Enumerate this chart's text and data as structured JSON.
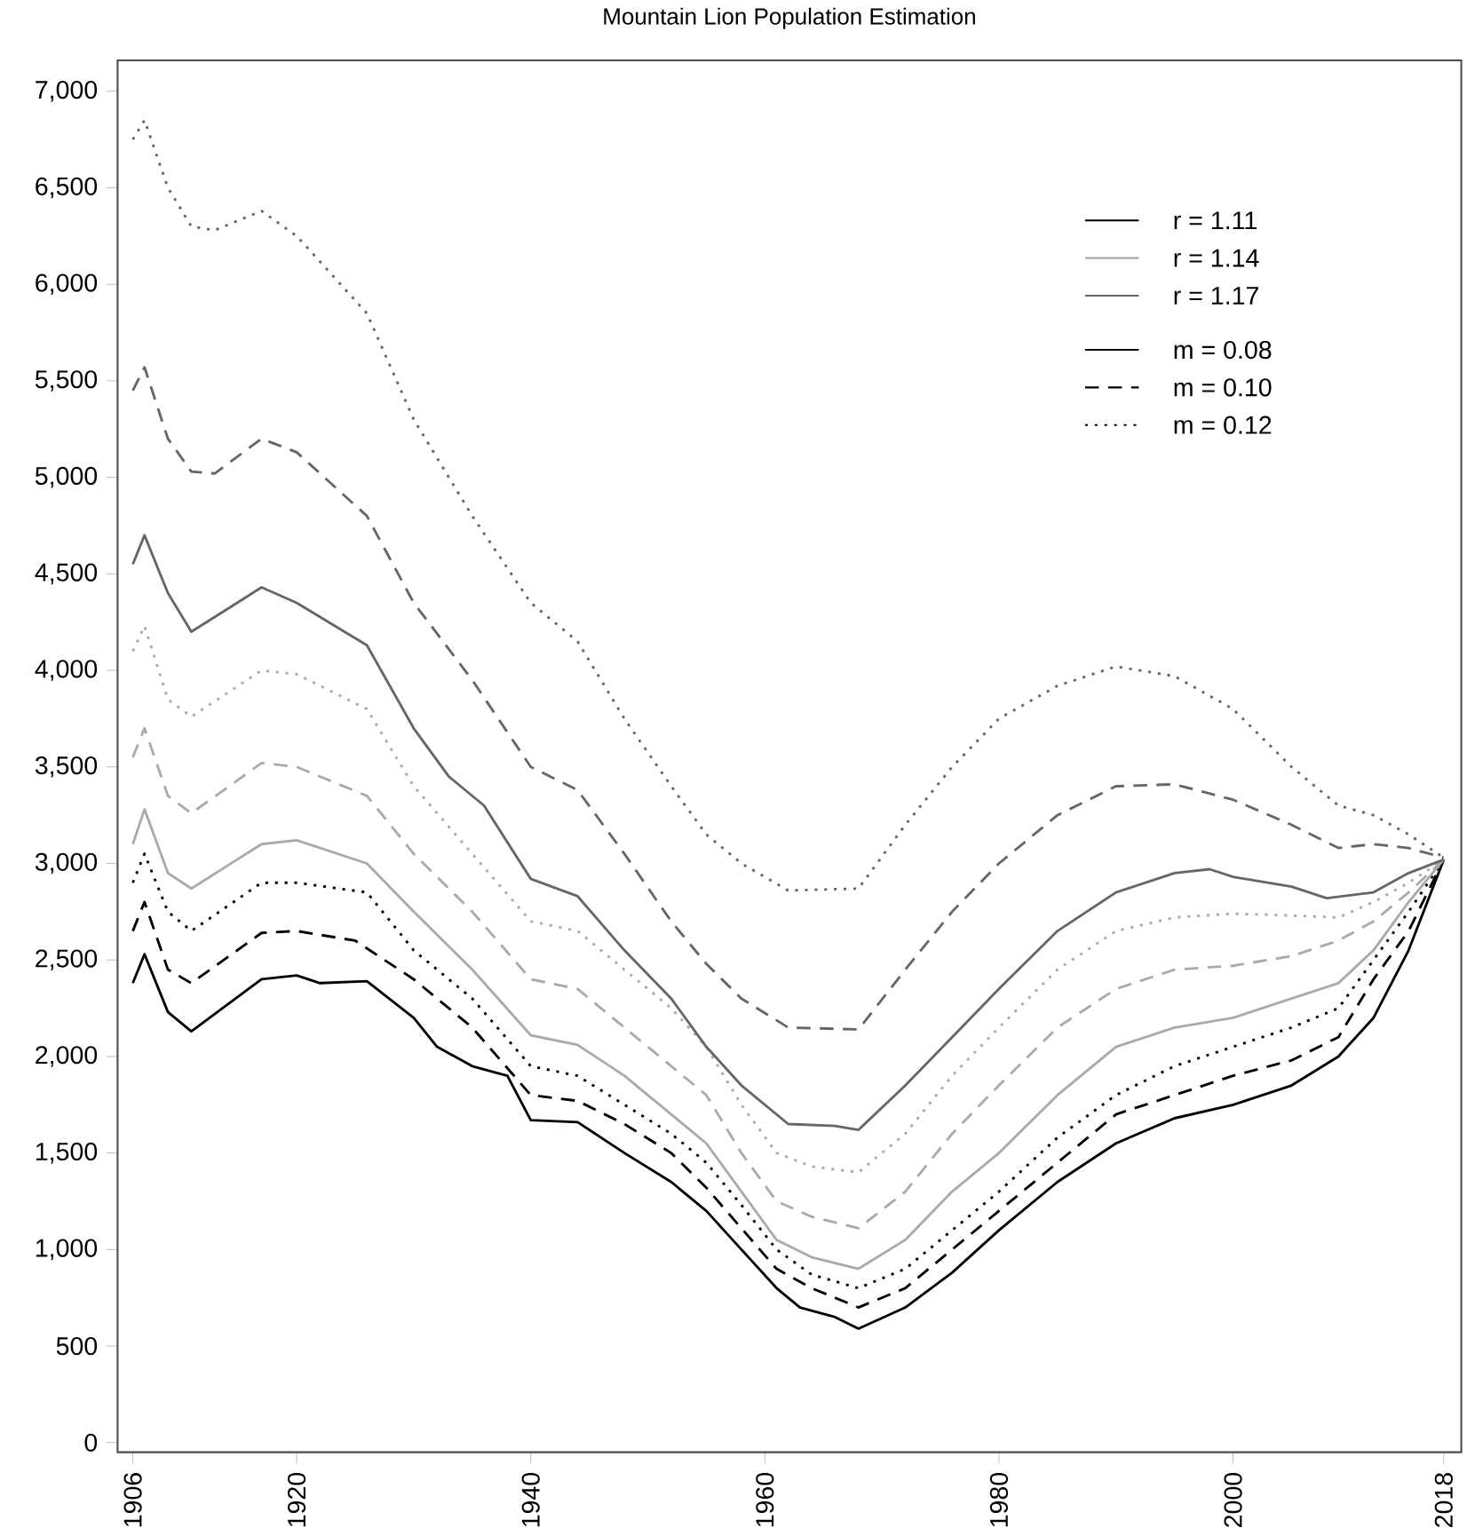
{
  "chart_data": {
    "type": "line",
    "title": "Mountain Lion Population Estimation",
    "xlim": [
      1904.7,
      2019.5
    ],
    "ylim": [
      -50,
      7160
    ],
    "xticks": [
      1906,
      1920,
      1940,
      1960,
      1980,
      2000,
      2018
    ],
    "yticks": [
      {
        "value": 0,
        "label": "0"
      },
      {
        "value": 500,
        "label": "500"
      },
      {
        "value": 1000,
        "label": "1,000"
      },
      {
        "value": 1500,
        "label": "1,500"
      },
      {
        "value": 2000,
        "label": "2,000"
      },
      {
        "value": 2500,
        "label": "2,500"
      },
      {
        "value": 3000,
        "label": "3,000"
      },
      {
        "value": 3500,
        "label": "3,500"
      },
      {
        "value": 4000,
        "label": "4,000"
      },
      {
        "value": 4500,
        "label": "4,500"
      },
      {
        "value": 5000,
        "label": "5,000"
      },
      {
        "value": 5500,
        "label": "5,500"
      },
      {
        "value": 6000,
        "label": "6,000"
      },
      {
        "value": 6500,
        "label": "6,500"
      },
      {
        "value": 7000,
        "label": "7,000"
      }
    ],
    "grid": false,
    "marker": "none",
    "annotations": [
      "r = 1.11",
      "r = 1.14",
      "r = 1.17",
      "m = 0.08",
      "m = 0.10",
      "m = 0.12"
    ],
    "series": [
      {
        "color": "#000000",
        "line_style": "solid",
        "x": [
          1906,
          1907,
          1909,
          1911,
          1917,
          1920,
          1922,
          1926,
          1930,
          1932,
          1935,
          1938,
          1940,
          1944,
          1948,
          1952,
          1955,
          1958,
          1961,
          1963,
          1966,
          1968,
          1972,
          1976,
          1980,
          1985,
          1990,
          1995,
          2000,
          2005,
          2009,
          2012,
          2015,
          2018
        ],
        "values": [
          2380,
          2530,
          2230,
          2130,
          2400,
          2420,
          2380,
          2390,
          2200,
          2050,
          1950,
          1900,
          1670,
          1660,
          1500,
          1350,
          1200,
          1000,
          800,
          700,
          650,
          590,
          700,
          880,
          1100,
          1350,
          1550,
          1680,
          1750,
          1850,
          2000,
          2200,
          2550,
          3020
        ]
      },
      {
        "color": "#000000",
        "line_style": "dashed",
        "x": [
          1906,
          1907,
          1909,
          1911,
          1917,
          1920,
          1925,
          1930,
          1935,
          1940,
          1944,
          1948,
          1952,
          1955,
          1958,
          1961,
          1964,
          1968,
          1972,
          1976,
          1980,
          1985,
          1990,
          1995,
          2000,
          2005,
          2009,
          2012,
          2015,
          2018
        ],
        "values": [
          2650,
          2800,
          2450,
          2380,
          2640,
          2650,
          2600,
          2400,
          2150,
          1800,
          1770,
          1650,
          1500,
          1320,
          1110,
          900,
          800,
          700,
          800,
          1000,
          1200,
          1450,
          1700,
          1800,
          1900,
          1980,
          2100,
          2400,
          2650,
          3020
        ]
      },
      {
        "color": "#000000",
        "line_style": "dotted",
        "x": [
          1906,
          1907,
          1909,
          1911,
          1917,
          1920,
          1926,
          1930,
          1935,
          1940,
          1944,
          1948,
          1952,
          1955,
          1958,
          1961,
          1964,
          1968,
          1972,
          1976,
          1980,
          1985,
          1990,
          1995,
          2000,
          2005,
          2009,
          2012,
          2015,
          2018
        ],
        "values": [
          2900,
          3050,
          2750,
          2650,
          2900,
          2900,
          2850,
          2550,
          2300,
          1950,
          1900,
          1750,
          1600,
          1450,
          1230,
          1000,
          870,
          800,
          900,
          1100,
          1300,
          1580,
          1800,
          1950,
          2050,
          2150,
          2250,
          2500,
          2750,
          3020
        ]
      },
      {
        "color": "#aaaaaa",
        "line_style": "solid",
        "x": [
          1906,
          1907,
          1909,
          1911,
          1917,
          1920,
          1926,
          1930,
          1935,
          1940,
          1944,
          1948,
          1952,
          1955,
          1958,
          1961,
          1964,
          1968,
          1972,
          1976,
          1980,
          1985,
          1990,
          1995,
          2000,
          2005,
          2009,
          2012,
          2015,
          2018
        ],
        "values": [
          3100,
          3280,
          2950,
          2870,
          3100,
          3120,
          3000,
          2750,
          2450,
          2110,
          2060,
          1900,
          1700,
          1550,
          1300,
          1050,
          960,
          900,
          1050,
          1300,
          1500,
          1800,
          2050,
          2150,
          2200,
          2300,
          2380,
          2550,
          2800,
          3020
        ]
      },
      {
        "color": "#aaaaaa",
        "line_style": "dashed",
        "x": [
          1906,
          1907,
          1909,
          1911,
          1917,
          1920,
          1926,
          1930,
          1935,
          1940,
          1944,
          1948,
          1952,
          1955,
          1958,
          1961,
          1964,
          1968,
          1972,
          1976,
          1980,
          1985,
          1990,
          1995,
          2000,
          2005,
          2009,
          2012,
          2015,
          2018
        ],
        "values": [
          3550,
          3700,
          3350,
          3260,
          3520,
          3500,
          3350,
          3050,
          2750,
          2400,
          2350,
          2150,
          1950,
          1800,
          1500,
          1250,
          1170,
          1110,
          1300,
          1600,
          1850,
          2150,
          2350,
          2450,
          2470,
          2520,
          2600,
          2700,
          2850,
          3020
        ]
      },
      {
        "color": "#aaaaaa",
        "line_style": "dotted",
        "x": [
          1906,
          1907,
          1909,
          1911,
          1917,
          1920,
          1926,
          1930,
          1935,
          1940,
          1944,
          1948,
          1952,
          1955,
          1958,
          1961,
          1964,
          1968,
          1972,
          1976,
          1980,
          1985,
          1990,
          1995,
          2000,
          2005,
          2009,
          2012,
          2015,
          2018
        ],
        "values": [
          4100,
          4230,
          3850,
          3760,
          4000,
          3980,
          3800,
          3400,
          3050,
          2700,
          2650,
          2450,
          2250,
          2050,
          1750,
          1500,
          1430,
          1400,
          1600,
          1900,
          2150,
          2450,
          2650,
          2720,
          2740,
          2730,
          2720,
          2800,
          2900,
          3020
        ]
      },
      {
        "color": "#666666",
        "line_style": "solid",
        "x": [
          1906,
          1907,
          1909,
          1911,
          1917,
          1920,
          1926,
          1930,
          1933,
          1936,
          1940,
          1944,
          1948,
          1952,
          1955,
          1958,
          1962,
          1966,
          1968,
          1972,
          1976,
          1980,
          1985,
          1990,
          1995,
          1998,
          2000,
          2005,
          2008,
          2012,
          2015,
          2018
        ],
        "values": [
          4550,
          4700,
          4400,
          4200,
          4430,
          4350,
          4130,
          3700,
          3450,
          3300,
          2920,
          2830,
          2550,
          2300,
          2050,
          1850,
          1650,
          1640,
          1620,
          1850,
          2100,
          2350,
          2650,
          2850,
          2950,
          2970,
          2930,
          2880,
          2820,
          2850,
          2950,
          3020
        ]
      },
      {
        "color": "#666666",
        "line_style": "dashed",
        "x": [
          1906,
          1907,
          1909,
          1911,
          1913,
          1917,
          1920,
          1926,
          1930,
          1935,
          1940,
          1944,
          1948,
          1952,
          1955,
          1958,
          1962,
          1968,
          1972,
          1976,
          1980,
          1985,
          1990,
          1995,
          2000,
          2005,
          2009,
          2012,
          2015,
          2018
        ],
        "values": [
          5450,
          5570,
          5200,
          5030,
          5020,
          5200,
          5130,
          4800,
          4350,
          3950,
          3500,
          3380,
          3050,
          2700,
          2480,
          2300,
          2150,
          2140,
          2450,
          2750,
          3000,
          3250,
          3400,
          3410,
          3330,
          3200,
          3080,
          3100,
          3080,
          3030
        ]
      },
      {
        "color": "#666666",
        "line_style": "dotted",
        "x": [
          1906,
          1907,
          1909,
          1911,
          1913,
          1917,
          1920,
          1926,
          1930,
          1935,
          1940,
          1944,
          1948,
          1952,
          1955,
          1958,
          1962,
          1968,
          1972,
          1976,
          1980,
          1985,
          1990,
          1995,
          2000,
          2005,
          2009,
          2012,
          2015,
          2018
        ],
        "values": [
          6750,
          6850,
          6500,
          6300,
          6280,
          6380,
          6250,
          5850,
          5300,
          4800,
          4350,
          4150,
          3750,
          3400,
          3150,
          3000,
          2860,
          2870,
          3200,
          3500,
          3750,
          3920,
          4020,
          3970,
          3800,
          3500,
          3300,
          3250,
          3150,
          3030
        ]
      }
    ]
  }
}
